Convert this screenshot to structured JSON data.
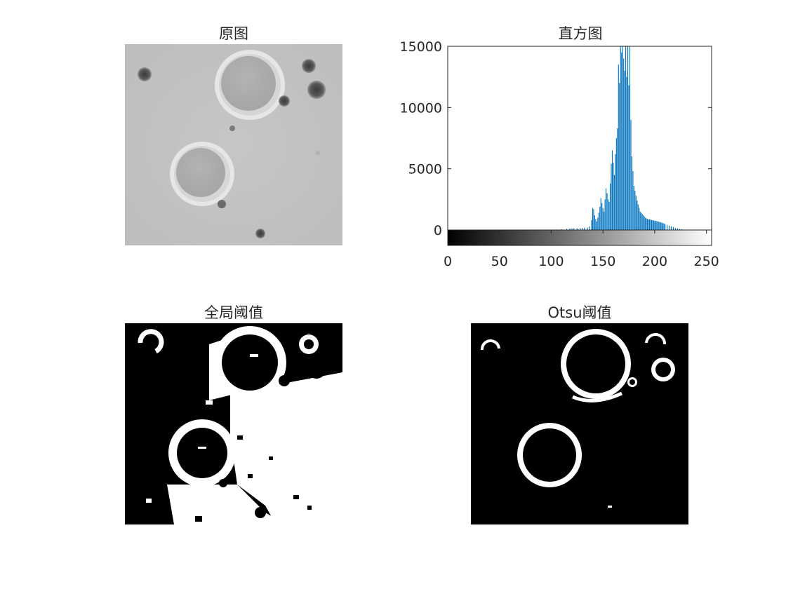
{
  "panels": {
    "original": {
      "title": "原图"
    },
    "histogram": {
      "title": "直方图"
    },
    "global": {
      "title": "全局阈值"
    },
    "otsu": {
      "title": "Otsu阈值"
    }
  },
  "chart_data": {
    "type": "bar",
    "title": "直方图",
    "xlabel": "",
    "ylabel": "",
    "xlim": [
      0,
      255
    ],
    "ylim": [
      0,
      15000
    ],
    "xticks": [
      0,
      50,
      100,
      150,
      200,
      250
    ],
    "yticks": [
      0,
      5000,
      10000,
      15000
    ],
    "bar_color": "#0072bd",
    "colorbar": "grayscale 0-255",
    "x": [
      105,
      110,
      115,
      118,
      120,
      122,
      125,
      128,
      130,
      132,
      135,
      137,
      139,
      140,
      141,
      142,
      143,
      144,
      145,
      146,
      147,
      148,
      149,
      150,
      151,
      152,
      153,
      154,
      155,
      156,
      157,
      158,
      159,
      160,
      161,
      162,
      163,
      164,
      165,
      166,
      167,
      168,
      169,
      170,
      171,
      172,
      173,
      174,
      175,
      176,
      177,
      178,
      179,
      180,
      181,
      182,
      183,
      184,
      185,
      186,
      187,
      188,
      189,
      190,
      191,
      192,
      193,
      194,
      195,
      196,
      197,
      198,
      199,
      200,
      201,
      202,
      203,
      204,
      205,
      206,
      207,
      208,
      209,
      210,
      212,
      214,
      216,
      218,
      220,
      222,
      224,
      226,
      228
    ],
    "values": [
      30,
      60,
      100,
      120,
      130,
      140,
      150,
      160,
      170,
      180,
      200,
      300,
      800,
      1800,
      1700,
      1200,
      900,
      700,
      1000,
      1400,
      1900,
      2600,
      2200,
      1800,
      1500,
      2500,
      3400,
      3000,
      2500,
      2300,
      3800,
      5400,
      6500,
      5500,
      4500,
      6200,
      7500,
      8300,
      13500,
      12000,
      15000,
      14500,
      15000,
      14000,
      13000,
      15000,
      12500,
      15000,
      11800,
      15000,
      9000,
      6000,
      4800,
      3600,
      3200,
      2800,
      2400,
      2100,
      1800,
      1500,
      1400,
      1300,
      1200,
      1100,
      1000,
      950,
      900,
      880,
      860,
      840,
      820,
      800,
      780,
      760,
      740,
      720,
      700,
      680,
      650,
      620,
      600,
      560,
      520,
      480,
      420,
      360,
      300,
      240,
      180,
      130,
      90,
      60,
      30
    ]
  }
}
